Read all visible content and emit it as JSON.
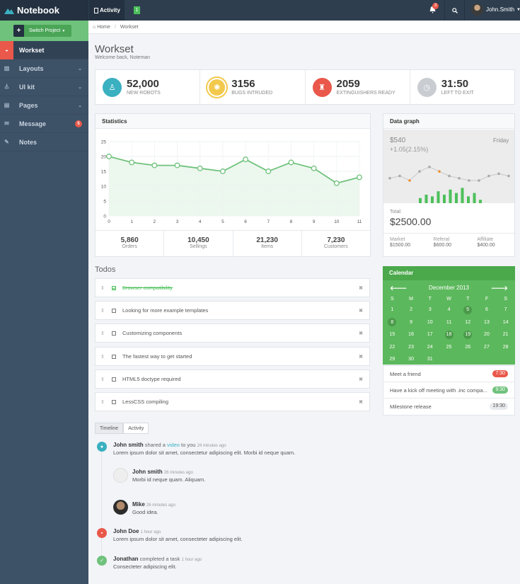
{
  "header": {
    "brand": "Notebook",
    "activity_label": "Activity",
    "indicator": "1",
    "notif_count": "3",
    "username": "John.Smith"
  },
  "sidebar": {
    "switch_label": "Switch Project",
    "items": [
      {
        "label": "Workset",
        "icon": "dashboard-icon",
        "active": true
      },
      {
        "label": "Layouts",
        "icon": "columns-icon"
      },
      {
        "label": "UI kit",
        "icon": "flask-icon"
      },
      {
        "label": "Pages",
        "icon": "file-icon"
      },
      {
        "label": "Message",
        "icon": "envelope-icon",
        "badge": "5"
      },
      {
        "label": "Notes",
        "icon": "pencil-icon"
      }
    ]
  },
  "breadcrumb": {
    "home": "Home",
    "current": "Workset"
  },
  "page": {
    "title": "Workset",
    "subtitle": "Welcome back, Noteman"
  },
  "stats": [
    {
      "value": "52,000",
      "label": "New robots",
      "color": "#3ab0c0",
      "icon": "male-icon"
    },
    {
      "value": "3156",
      "label": "Bugs intruded",
      "color": "#f2c94c",
      "icon": "bug-icon"
    },
    {
      "value": "2059",
      "label": "Extinguishers ready",
      "color": "#e9584a",
      "icon": "fire-extinguisher-icon"
    },
    {
      "value": "31:50",
      "label": "Left to exit",
      "color": "#c9cdd1",
      "icon": "clock-icon"
    }
  ],
  "statistics": {
    "title": "Statistics",
    "footer": [
      {
        "value": "5,860",
        "label": "Orders"
      },
      {
        "value": "10,450",
        "label": "Sellings"
      },
      {
        "value": "21,230",
        "label": "Items"
      },
      {
        "value": "7,230",
        "label": "Customers"
      }
    ]
  },
  "chart_data": {
    "type": "area",
    "x": [
      0,
      1,
      2,
      3,
      4,
      5,
      6,
      7,
      8,
      9,
      10,
      11
    ],
    "values": [
      20,
      18,
      17,
      17,
      16,
      15,
      19,
      15,
      18,
      16,
      11,
      13
    ],
    "ylim": [
      0,
      25
    ],
    "yticks": [
      0,
      5,
      10,
      15,
      20,
      25
    ],
    "xticks": [
      0,
      1,
      2,
      3,
      4,
      5,
      6,
      7,
      8,
      9,
      10,
      11
    ],
    "grid": true,
    "color": "#6fc27c"
  },
  "data_graph": {
    "title": "Data graph",
    "price": "$540",
    "change": "+1.05(2.15%)",
    "day": "Friday",
    "total_label": "Total:",
    "total": "$2500.00",
    "cells": [
      {
        "label": "Market",
        "value": "$1500.00"
      },
      {
        "label": "Referal",
        "value": "$600.00"
      },
      {
        "label": "Affiliate",
        "value": "$400.00"
      }
    ],
    "line_values": [
      6,
      7,
      5,
      9,
      11,
      9,
      7,
      6,
      5,
      5,
      7,
      8,
      7
    ],
    "highlight_points": [
      2,
      5
    ],
    "bar_values": [
      3,
      5,
      4,
      7,
      5,
      8,
      6,
      9,
      4,
      6,
      2
    ],
    "line_color": "#c8c8c8",
    "bar_color": "#4cc05a",
    "highlight_color": "#f0912f"
  },
  "todos": {
    "title": "Todos",
    "items": [
      {
        "text": "Browser compatibility",
        "done": true
      },
      {
        "text": "Looking for more example templates",
        "done": false
      },
      {
        "text": "Customizing components",
        "done": false
      },
      {
        "text": "The fastest way to get started",
        "done": false
      },
      {
        "text": "HTML5 doctype required",
        "done": false
      },
      {
        "text": "LessCSS compiling",
        "done": false
      }
    ]
  },
  "calendar": {
    "title": "Calendar",
    "month": "December 2013",
    "dow": [
      "S",
      "M",
      "T",
      "W",
      "T",
      "F",
      "S"
    ],
    "weeks": [
      [
        "1",
        "2",
        "3",
        "4",
        "5",
        "6",
        "7"
      ],
      [
        "8",
        "9",
        "10",
        "11",
        "12",
        "13",
        "14"
      ],
      [
        "15",
        "16",
        "17",
        "18",
        "19",
        "20",
        "21"
      ],
      [
        "22",
        "23",
        "24",
        "25",
        "26",
        "27",
        "28"
      ],
      [
        "29",
        "30",
        "31",
        "",
        "",
        "",
        ""
      ]
    ],
    "marked": [
      "5",
      "8",
      "18",
      "19"
    ]
  },
  "events": [
    {
      "text": "Meet a friend",
      "time": "7:30",
      "color": "#e9584a"
    },
    {
      "text": "Have a kick off meeting with .inc compa...",
      "time": "9:30",
      "color": "#6fc27c"
    },
    {
      "text": "Milestone release",
      "time": "19:30",
      "color": "#e8eaed"
    }
  ],
  "timeline": {
    "tabs": [
      "Timeline",
      "Activity"
    ],
    "entries": [
      {
        "who": "John smith",
        "action": " shared a ",
        "link": "video",
        "action2": " to you ",
        "time": "24 minutes ago",
        "body": "Lorem ipsum dolor sit amet, consectetur adipiscing elit. Morbi id neque quam."
      },
      {
        "who": "John smith",
        "time": "26 minutes ago",
        "body": "Morbi id neque quam. Aliquam."
      },
      {
        "who": "Mike",
        "time": "26 minutes ago",
        "body": "Good idea."
      },
      {
        "who": "John Doe",
        "time": "1 hour ago",
        "body": "Lorem ipsum dolor sit amet, consecteter adipiscing elit."
      },
      {
        "who": "Jonathan",
        "action": " completed a task ",
        "time": "1 hour ago",
        "body": "Consecteter adipiscing elit."
      }
    ]
  }
}
